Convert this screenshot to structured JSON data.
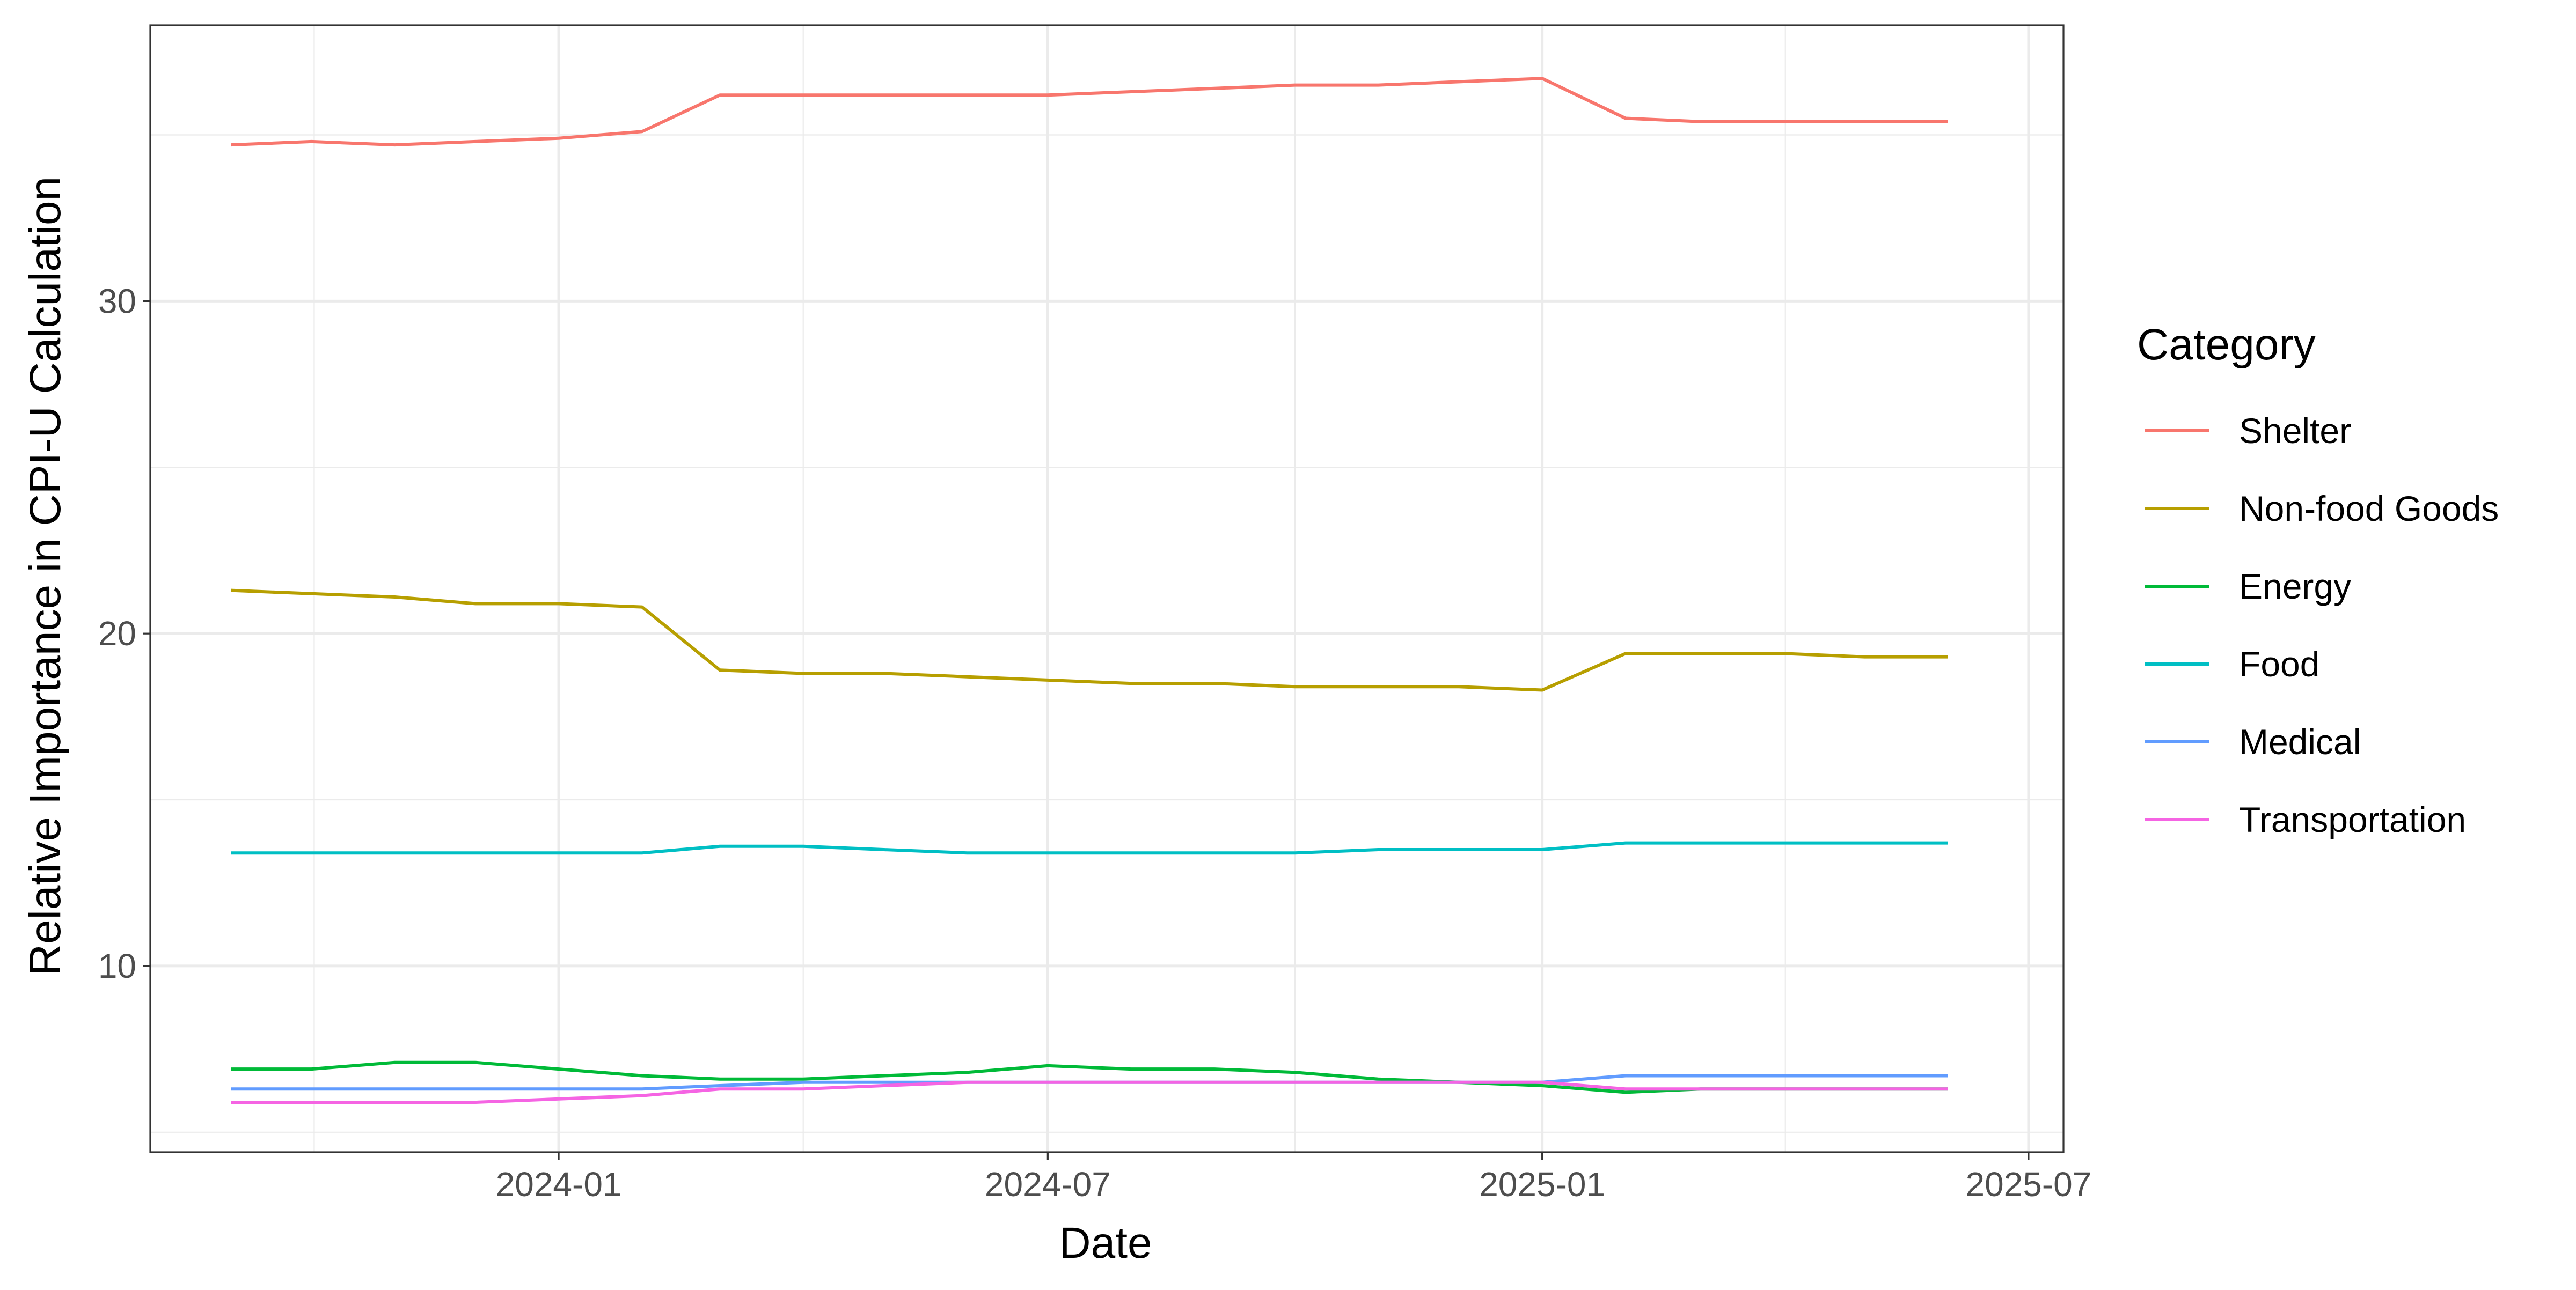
{
  "chart_data": {
    "type": "line",
    "title": "",
    "xlabel": "Date",
    "ylabel": "Relative Importance in CPI-U Calculation",
    "grid": true,
    "legend_position": "right",
    "legend_title": "Category",
    "xlim": [
      "2023-08-02",
      "2025-07-14"
    ],
    "ylim": [
      4.4,
      38.3
    ],
    "y_ticks": [
      10,
      20,
      30
    ],
    "x_ticks": [
      "2024-01",
      "2024-07",
      "2025-01",
      "2025-07"
    ],
    "x": [
      "2023-09-01",
      "2023-10-01",
      "2023-11-01",
      "2023-12-01",
      "2024-01-01",
      "2024-02-01",
      "2024-03-01",
      "2024-04-01",
      "2024-05-01",
      "2024-06-01",
      "2024-07-01",
      "2024-08-01",
      "2024-09-01",
      "2024-10-01",
      "2024-11-01",
      "2024-12-01",
      "2025-01-01",
      "2025-02-01",
      "2025-03-01",
      "2025-04-01",
      "2025-05-01",
      "2025-06-01"
    ],
    "series": [
      {
        "name": "Shelter",
        "color": "#F8766D",
        "values": [
          34.7,
          34.8,
          34.7,
          34.8,
          34.9,
          35.1,
          36.2,
          36.2,
          36.2,
          36.2,
          36.2,
          36.3,
          36.4,
          36.5,
          36.5,
          36.6,
          36.7,
          35.5,
          35.4,
          35.4,
          35.4,
          35.4
        ]
      },
      {
        "name": "Non-food Goods",
        "color": "#B79F00",
        "values": [
          21.3,
          21.2,
          21.1,
          20.9,
          20.9,
          20.8,
          18.9,
          18.8,
          18.8,
          18.7,
          18.6,
          18.5,
          18.5,
          18.4,
          18.4,
          18.4,
          18.3,
          19.4,
          19.4,
          19.4,
          19.3,
          19.3
        ]
      },
      {
        "name": "Energy",
        "color": "#00BA38",
        "values": [
          6.9,
          6.9,
          7.1,
          7.1,
          6.9,
          6.7,
          6.6,
          6.6,
          6.7,
          6.8,
          7.0,
          6.9,
          6.9,
          6.8,
          6.6,
          6.5,
          6.4,
          6.2,
          6.3,
          6.3,
          6.3,
          6.3
        ]
      },
      {
        "name": "Food",
        "color": "#00BFC4",
        "values": [
          13.4,
          13.4,
          13.4,
          13.4,
          13.4,
          13.4,
          13.6,
          13.6,
          13.5,
          13.4,
          13.4,
          13.4,
          13.4,
          13.4,
          13.5,
          13.5,
          13.5,
          13.7,
          13.7,
          13.7,
          13.7,
          13.7
        ]
      },
      {
        "name": "Medical",
        "color": "#619CFF",
        "values": [
          6.3,
          6.3,
          6.3,
          6.3,
          6.3,
          6.3,
          6.4,
          6.5,
          6.5,
          6.5,
          6.5,
          6.5,
          6.5,
          6.5,
          6.5,
          6.5,
          6.5,
          6.7,
          6.7,
          6.7,
          6.7,
          6.7
        ]
      },
      {
        "name": "Transportation",
        "color": "#F564E3",
        "values": [
          5.9,
          5.9,
          5.9,
          5.9,
          6.0,
          6.1,
          6.3,
          6.3,
          6.4,
          6.5,
          6.5,
          6.5,
          6.5,
          6.5,
          6.5,
          6.5,
          6.5,
          6.3,
          6.3,
          6.3,
          6.3,
          6.3
        ]
      }
    ]
  }
}
